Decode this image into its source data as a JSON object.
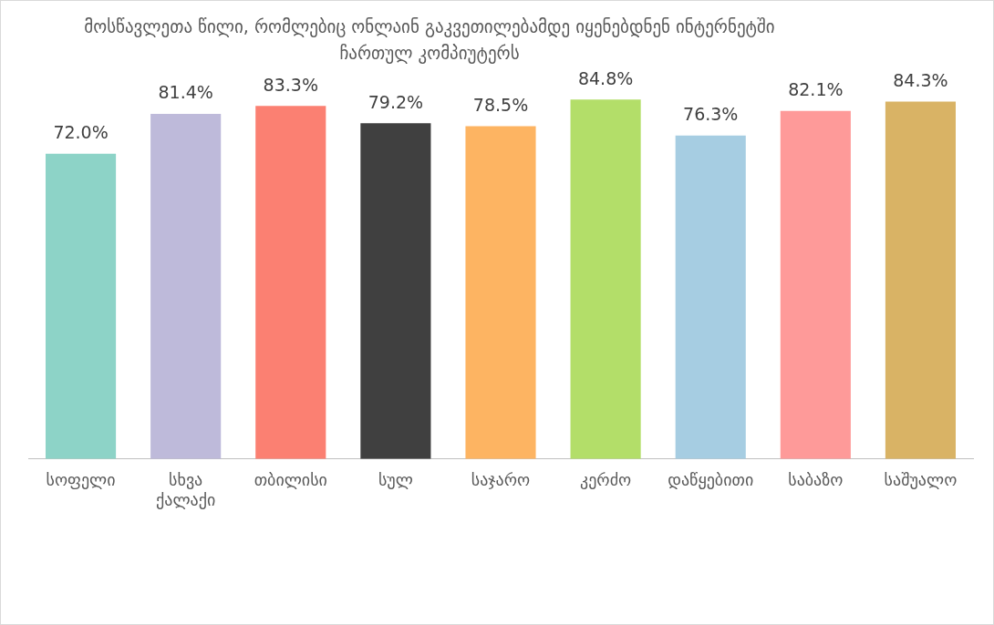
{
  "chart_data": {
    "type": "bar",
    "title": "მოსწავლეთა წილი, რომლებიც ონლაინ გაკვეთილებამდე იყენებდნენ ინტერნეტში ჩართულ კომპიუტერს",
    "categories": [
      "სოფელი",
      "სხვა ქალაქი",
      "თბილისი",
      "სულ",
      "საჯარო",
      "კერძო",
      "დაწყებითი",
      "საბაზო",
      "საშუალო"
    ],
    "values": [
      72.0,
      81.4,
      83.3,
      79.2,
      78.5,
      84.8,
      76.3,
      82.1,
      84.3
    ],
    "value_labels": [
      "72.0%",
      "81.4%",
      "83.3%",
      "79.2%",
      "78.5%",
      "84.8%",
      "76.3%",
      "82.1%",
      "84.3%"
    ],
    "colors": [
      "#8dd3c7",
      "#bebada",
      "#fb8072",
      "#404040",
      "#fdb462",
      "#b3de69",
      "#a6cde2",
      "#fe9a99",
      "#d9b365"
    ],
    "tick_labels": "x",
    "grid": false,
    "legend": false
  }
}
